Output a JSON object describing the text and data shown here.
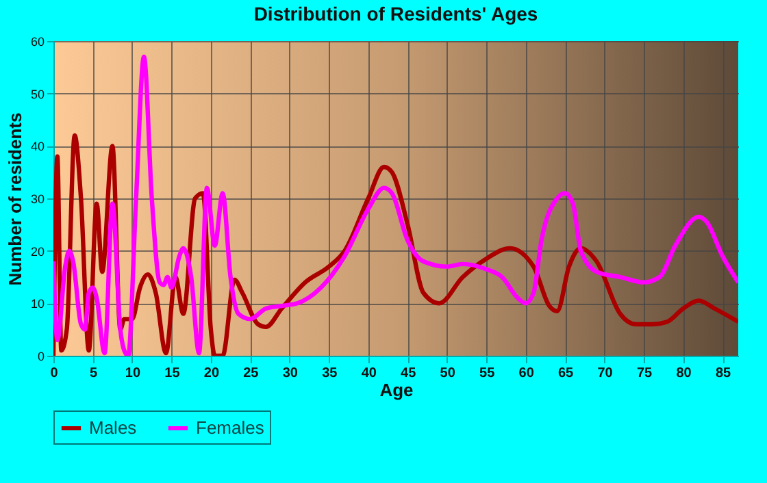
{
  "chart_data": {
    "type": "line",
    "title": "Distribution of Residents' Ages",
    "xlabel": "Age",
    "ylabel": "Number of residents",
    "xlim": [
      0,
      87
    ],
    "xticks": [
      0,
      5,
      10,
      15,
      20,
      25,
      30,
      35,
      40,
      45,
      50,
      55,
      60,
      65,
      70,
      75,
      80,
      85
    ],
    "ylim": [
      0,
      60
    ],
    "yticks": [
      0,
      10,
      20,
      30,
      40,
      50,
      60
    ],
    "grid": true,
    "legend": "bottom",
    "marker": "none",
    "line_style": "solid",
    "series": [
      {
        "name": "Males",
        "color": "#aa0000",
        "x": [
          0,
          0.5,
          1,
          1.7,
          2.7,
          3.5,
          4.5,
          5.5,
          6.2,
          7.5,
          8.5,
          9,
          10,
          11,
          12,
          13,
          14.3,
          15.5,
          16.5,
          18,
          19,
          20,
          20.5,
          21.5,
          23,
          24,
          26,
          27,
          29,
          32,
          35,
          37,
          40,
          42,
          43,
          45,
          47,
          49,
          52,
          55,
          58,
          61,
          63,
          64,
          65.5,
          67,
          69,
          72,
          74,
          76,
          78,
          80,
          82,
          84,
          87
        ],
        "values": [
          0,
          38,
          1,
          5,
          42,
          30,
          1,
          29,
          16,
          40,
          5,
          7,
          7,
          13,
          15.5,
          12,
          0.5,
          15,
          8,
          30,
          31,
          5,
          0,
          0,
          14.5,
          12,
          6,
          5.5,
          9,
          14,
          17,
          20,
          30,
          36,
          35,
          25,
          12,
          10,
          15,
          18.5,
          20.5,
          17,
          9.5,
          8.5,
          17,
          20.5,
          18,
          8,
          6,
          6,
          6.5,
          9,
          10.5,
          9,
          6.5
        ]
      },
      {
        "name": "Females",
        "color": "#ff00ff",
        "x": [
          0,
          0.5,
          1.5,
          2,
          2.5,
          3.5,
          4,
          4.5,
          5,
          5.5,
          6.5,
          7.5,
          8.5,
          9,
          9.5,
          10.5,
          11.5,
          12.5,
          13.5,
          14,
          14.5,
          15,
          16,
          16.5,
          17.5,
          18.5,
          19.5,
          20.5,
          21.5,
          22.5,
          23.5,
          25,
          27,
          29,
          31,
          34,
          37,
          40,
          42,
          43,
          45,
          47,
          50,
          52,
          55,
          57,
          59,
          60,
          61,
          62,
          64,
          65,
          66,
          67,
          69,
          72,
          75,
          77,
          79,
          82,
          83,
          85,
          87
        ],
        "values": [
          18,
          3,
          17,
          20,
          18,
          6,
          5,
          12,
          13,
          11,
          0.5,
          29,
          5,
          1,
          0,
          30,
          57,
          30,
          14,
          13.5,
          15,
          13,
          19,
          20.5,
          15,
          0.5,
          32,
          21,
          31,
          15,
          8,
          7,
          9,
          9.5,
          10,
          13,
          19,
          28,
          32,
          31,
          22,
          18,
          17,
          17.5,
          16.5,
          15,
          11,
          10,
          12,
          22,
          30,
          31,
          29,
          20,
          16,
          15,
          14,
          15,
          21,
          26.5,
          25.5,
          19,
          14
        ]
      }
    ]
  }
}
